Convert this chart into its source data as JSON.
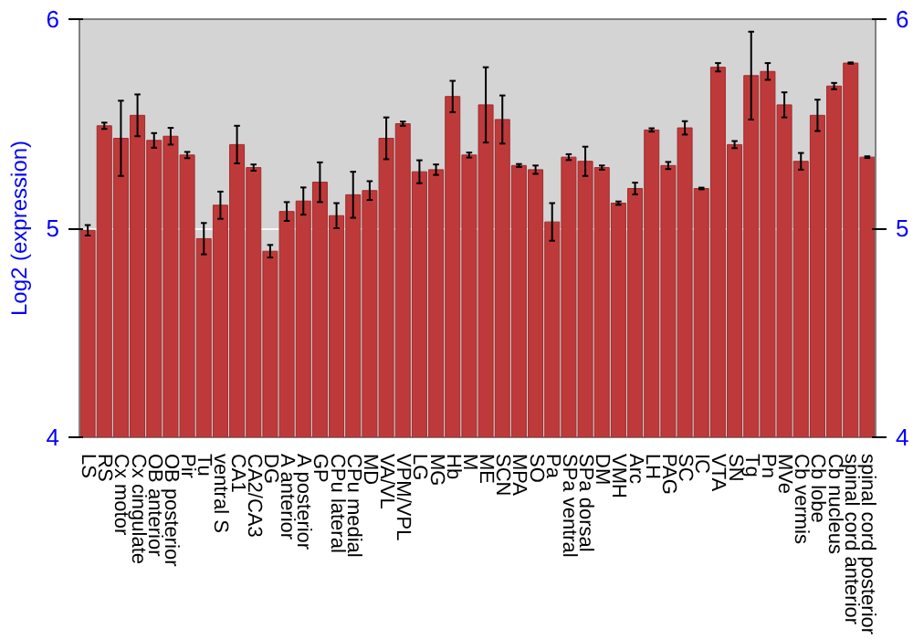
{
  "chart_data": {
    "type": "bar",
    "ylabel": "Log2 (expression)",
    "categories": [
      "LS",
      "RS",
      "Cx motor",
      "Cx cingulate",
      "OB anterior",
      "OB posterior",
      "Pir",
      "Tu",
      "ventral S",
      "CA1",
      "CA2/CA3",
      "DG",
      "A anterior",
      "A posterior",
      "GP",
      "CPu lateral",
      "CPu medial",
      "MD",
      "VA/VL",
      "VPM/VPL",
      "LG",
      "MG",
      "Hb",
      "M",
      "ME",
      "SCN",
      "MPA",
      "SO",
      "Pa",
      "SPa ventral",
      "SPa dorsal",
      "DM",
      "VMH",
      "Arc",
      "LH",
      "PAG",
      "SC",
      "IC",
      "VTA",
      "SN",
      "Tg",
      "Pn",
      "MVe",
      "Cb vermis",
      "Cb lobe",
      "Cb nucleus",
      "spinal cord anterior",
      "spinal cord posterior"
    ],
    "values": [
      4.99,
      5.49,
      5.43,
      5.54,
      5.42,
      5.44,
      5.35,
      4.95,
      5.11,
      5.4,
      5.29,
      4.89,
      5.08,
      5.13,
      5.22,
      5.06,
      5.16,
      5.18,
      5.43,
      5.5,
      5.27,
      5.28,
      5.63,
      5.35,
      5.59,
      5.52,
      5.3,
      5.28,
      5.03,
      5.34,
      5.32,
      5.29,
      5.12,
      5.19,
      5.47,
      5.3,
      5.48,
      5.19,
      5.77,
      5.4,
      5.73,
      5.75,
      5.59,
      5.32,
      5.54,
      5.68,
      5.79,
      5.34
    ],
    "errors": [
      0.025,
      0.015,
      0.18,
      0.1,
      0.035,
      0.04,
      0.015,
      0.075,
      0.065,
      0.09,
      0.015,
      0.03,
      0.045,
      0.065,
      0.095,
      0.06,
      0.11,
      0.045,
      0.1,
      0.01,
      0.055,
      0.025,
      0.075,
      0.012,
      0.18,
      0.115,
      0.007,
      0.02,
      0.09,
      0.014,
      0.07,
      0.01,
      0.008,
      0.028,
      0.008,
      0.017,
      0.032,
      0.004,
      0.02,
      0.017,
      0.21,
      0.04,
      0.06,
      0.04,
      0.075,
      0.015,
      0.003,
      0.004
    ],
    "color": "#be3a3a",
    "ylim": [
      4,
      6
    ],
    "yticks": [
      4,
      5,
      6
    ],
    "y2lim": [
      4,
      6
    ],
    "y2ticks": [
      4,
      5,
      6
    ],
    "grid": "y"
  }
}
